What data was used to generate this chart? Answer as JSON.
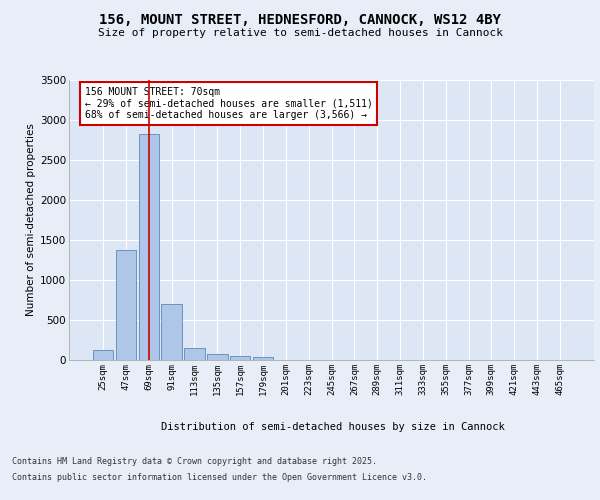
{
  "title1": "156, MOUNT STREET, HEDNESFORD, CANNOCK, WS12 4BY",
  "title2": "Size of property relative to semi-detached houses in Cannock",
  "xlabel": "Distribution of semi-detached houses by size in Cannock",
  "ylabel": "Number of semi-detached properties",
  "bar_labels": [
    "25sqm",
    "47sqm",
    "69sqm",
    "91sqm",
    "113sqm",
    "135sqm",
    "157sqm",
    "179sqm",
    "201sqm",
    "223sqm",
    "245sqm",
    "267sqm",
    "289sqm",
    "311sqm",
    "333sqm",
    "355sqm",
    "377sqm",
    "399sqm",
    "421sqm",
    "443sqm",
    "465sqm"
  ],
  "bar_values": [
    130,
    1370,
    2820,
    700,
    155,
    80,
    45,
    35,
    0,
    0,
    0,
    0,
    0,
    0,
    0,
    0,
    0,
    0,
    0,
    0,
    0
  ],
  "bar_color": "#aec6e8",
  "bar_edge_color": "#5a8ab5",
  "vline_color": "#cc0000",
  "annotation_text": "156 MOUNT STREET: 70sqm\n← 29% of semi-detached houses are smaller (1,511)\n68% of semi-detached houses are larger (3,566) →",
  "ylim": [
    0,
    3500
  ],
  "yticks": [
    0,
    500,
    1000,
    1500,
    2000,
    2500,
    3000,
    3500
  ],
  "background_color": "#dce6f5",
  "fig_background_color": "#e8eef8",
  "footer_line1": "Contains HM Land Registry data © Crown copyright and database right 2025.",
  "footer_line2": "Contains public sector information licensed under the Open Government Licence v3.0."
}
